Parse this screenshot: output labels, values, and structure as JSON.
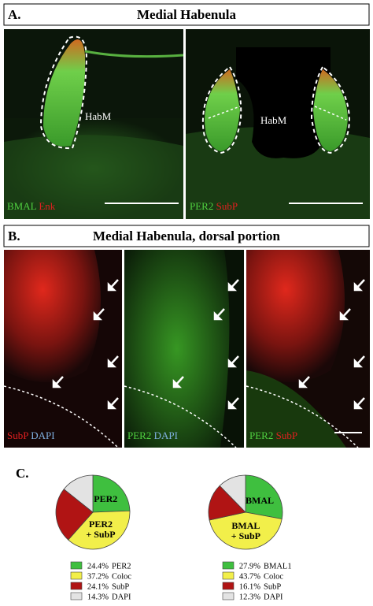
{
  "panels": [
    {
      "letter": "A.",
      "title": "Medial Habenula",
      "images": [
        {
          "region": "HabM",
          "stains": [
            "BMAL",
            "Enk"
          ]
        },
        {
          "region": "HabM",
          "stains": [
            "PER2",
            "SubP"
          ]
        }
      ]
    },
    {
      "letter": "B.",
      "title": "Medial Habenula, dorsal portion",
      "images": [
        {
          "stains": [
            "SubP",
            "DAPI"
          ]
        },
        {
          "stains": [
            "PER2",
            "DAPI"
          ]
        },
        {
          "stains": [
            "PER2",
            "SubP"
          ]
        }
      ]
    },
    {
      "letter": "C."
    }
  ],
  "chart_data": [
    {
      "type": "pie",
      "categories": [
        "PER2",
        "Coloc",
        "SubP",
        "DAPI"
      ],
      "values": [
        24.4,
        37.2,
        24.1,
        14.3
      ],
      "value_labels": [
        "24.4%",
        "37.2%",
        "24.1%",
        "14.3%"
      ],
      "colors": [
        "#3fbf3f",
        "#f2ef4a",
        "#b01414",
        "#e3e3e3"
      ],
      "slice_labels": [
        [
          "PER2"
        ],
        [
          "PER2",
          "+ SubP"
        ]
      ]
    },
    {
      "type": "pie",
      "categories": [
        "BMAL1",
        "Coloc",
        "SubP",
        "DAPI"
      ],
      "values": [
        27.9,
        43.7,
        16.1,
        12.3
      ],
      "value_labels": [
        "27.9%",
        "43.7%",
        "16.1%",
        "12.3%"
      ],
      "colors": [
        "#3fbf3f",
        "#f2ef4a",
        "#b01414",
        "#e3e3e3"
      ],
      "slice_labels": [
        [
          "BMAL"
        ],
        [
          "BMAL",
          "+ SubP"
        ]
      ]
    }
  ]
}
